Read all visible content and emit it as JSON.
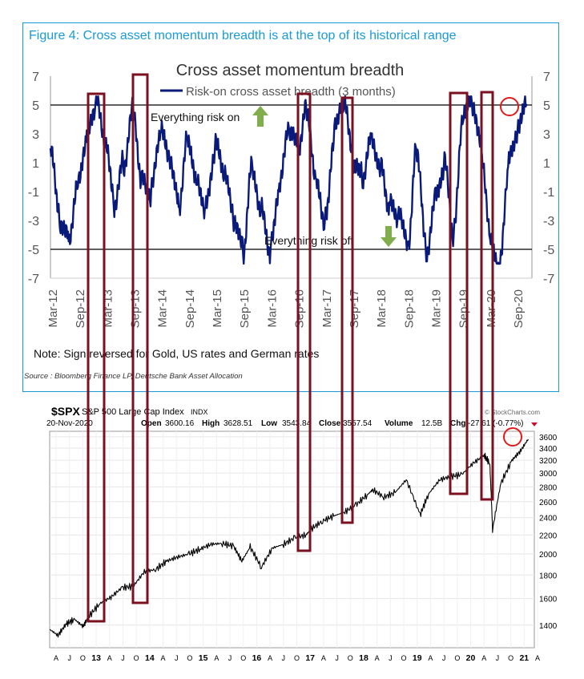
{
  "figure": {
    "title": "Figure 4: Cross asset momentum breadth is at the top of its historical range",
    "note": "Note: Sign reversed for Gold, US rates and German rates",
    "source": "Source : Bloomberg Finance LP, Deutsche Bank Asset Allocation"
  },
  "chart_data": [
    {
      "type": "line",
      "title": "Cross asset momentum breadth",
      "legend": [
        "Risk-on cross asset breadth (3 months)"
      ],
      "legend_placement": "top-center",
      "ylim": [
        -7,
        7
      ],
      "yticks": [
        "7",
        "5",
        "3",
        "1",
        "-1",
        "-3",
        "-5",
        "-7"
      ],
      "xticks": [
        "Mar-12",
        "Sep-12",
        "Mar-13",
        "Sep-13",
        "Mar-14",
        "Sep-14",
        "Mar-15",
        "Sep-15",
        "Mar-16",
        "Sep-16",
        "Mar-17",
        "Sep-17",
        "Mar-18",
        "Sep-18",
        "Mar-19",
        "Sep-19",
        "Mar-20",
        "Sep-20"
      ],
      "reference_lines": [
        5,
        -5
      ],
      "annotations": [
        "Everything risk on",
        "Everything risk off"
      ],
      "series": [
        {
          "name": "Risk-on cross asset breadth (3 months)",
          "color": "#0a1a7a",
          "x": [
            2012.17,
            2012.33,
            2012.5,
            2012.67,
            2012.83,
            2013.0,
            2013.17,
            2013.33,
            2013.5,
            2013.67,
            2013.83,
            2014.0,
            2014.17,
            2014.33,
            2014.5,
            2014.67,
            2014.83,
            2015.0,
            2015.17,
            2015.33,
            2015.5,
            2015.67,
            2015.83,
            2016.0,
            2016.17,
            2016.33,
            2016.5,
            2016.67,
            2016.83,
            2017.0,
            2017.17,
            2017.33,
            2017.5,
            2017.67,
            2017.83,
            2018.0,
            2018.17,
            2018.33,
            2018.5,
            2018.67,
            2018.83,
            2019.0,
            2019.17,
            2019.33,
            2019.5,
            2019.67,
            2019.83,
            2020.0,
            2020.17,
            2020.33,
            2020.5,
            2020.67,
            2020.83
          ],
          "values": [
            2,
            -3,
            -4,
            0,
            3,
            5,
            2,
            -2,
            1,
            5,
            0,
            -1,
            3,
            1,
            -2,
            3,
            0,
            -2,
            2,
            0,
            -3,
            -5,
            1,
            -2,
            -5,
            -1,
            3,
            2,
            5,
            0,
            -3,
            3,
            5,
            1,
            0,
            3,
            1,
            -2,
            -3,
            -5,
            2,
            -5,
            -1,
            1,
            -4,
            4,
            5,
            2,
            -4,
            -6,
            1,
            3,
            5
          ]
        }
      ]
    },
    {
      "type": "line",
      "title": "$SPX S&P 500 Large Cap Index INDX",
      "info": {
        "symbol": "$SPX",
        "name": "S&P 500 Large Cap Index",
        "exchange": "INDX",
        "date": "20-Nov-2020",
        "open_label": "Open",
        "open": "3600.16",
        "high_label": "High",
        "high": "3628.51",
        "low_label": "Low",
        "low": "3543.84",
        "close_label": "Close",
        "close": "3557.54",
        "volume_label": "Volume",
        "volume": "12.5B",
        "chg_label": "Chg",
        "chg": "-27.61 (-0.77%)",
        "watermark": "© StockCharts.com"
      },
      "yticks": [
        3600,
        3400,
        3200,
        3000,
        2800,
        2600,
        2400,
        2200,
        2000,
        1800,
        1600,
        1400
      ],
      "ylim": [
        1250,
        3700
      ],
      "xticks": [
        "A",
        "J",
        "O",
        "13",
        "A",
        "J",
        "O",
        "14",
        "A",
        "J",
        "O",
        "15",
        "A",
        "J",
        "O",
        "16",
        "A",
        "J",
        "O",
        "17",
        "A",
        "J",
        "O",
        "18",
        "A",
        "J",
        "O",
        "19",
        "A",
        "J",
        "O",
        "20",
        "A",
        "J",
        "O",
        "21",
        "A"
      ],
      "series": [
        {
          "name": "S&P 500",
          "color": "#000000",
          "x": [
            2012.3,
            2012.45,
            2012.6,
            2012.75,
            2012.9,
            2013.0,
            2013.2,
            2013.4,
            2013.6,
            2013.8,
            2014.0,
            2014.2,
            2014.4,
            2014.6,
            2014.8,
            2015.0,
            2015.2,
            2015.4,
            2015.6,
            2015.75,
            2015.9,
            2016.1,
            2016.3,
            2016.5,
            2016.7,
            2016.9,
            2017.0,
            2017.2,
            2017.4,
            2017.6,
            2017.8,
            2018.0,
            2018.1,
            2018.3,
            2018.5,
            2018.7,
            2018.95,
            2019.1,
            2019.3,
            2019.5,
            2019.7,
            2019.9,
            2020.1,
            2020.2,
            2020.25,
            2020.4,
            2020.6,
            2020.75,
            2020.89
          ],
          "values": [
            1370,
            1330,
            1410,
            1440,
            1390,
            1460,
            1560,
            1610,
            1690,
            1700,
            1830,
            1850,
            1930,
            1970,
            2000,
            2050,
            2100,
            2110,
            2080,
            1930,
            2070,
            1870,
            2060,
            2100,
            2170,
            2200,
            2270,
            2360,
            2420,
            2470,
            2560,
            2690,
            2760,
            2660,
            2720,
            2900,
            2430,
            2700,
            2900,
            2950,
            2980,
            3150,
            3280,
            3150,
            2250,
            2850,
            3200,
            3350,
            3557
          ]
        }
      ]
    }
  ]
}
